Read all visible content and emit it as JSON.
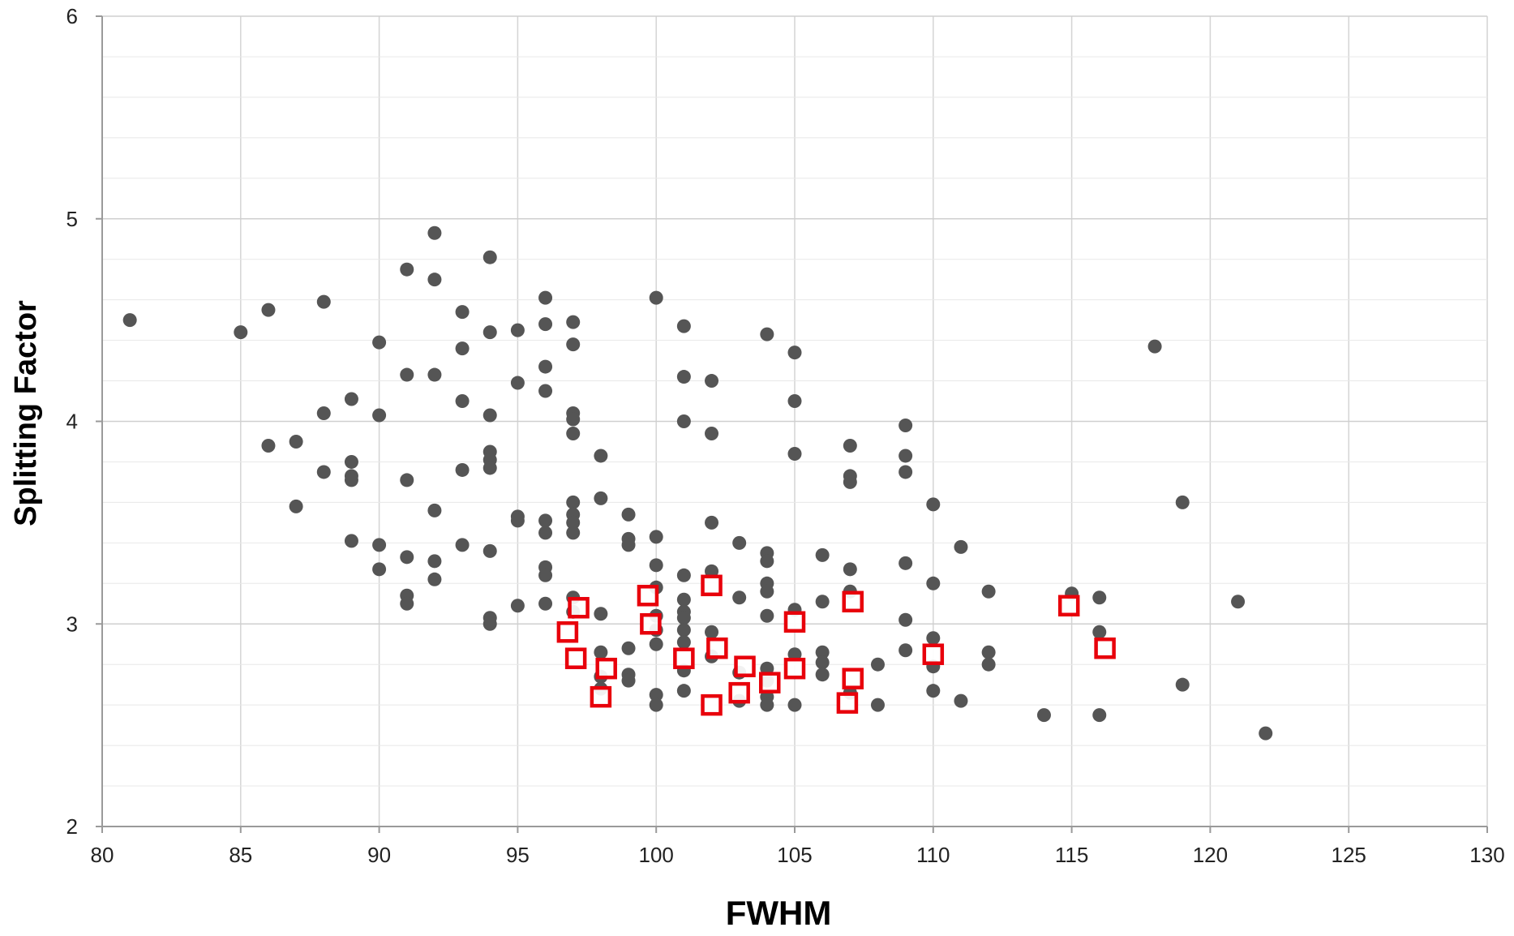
{
  "chart_data": {
    "type": "scatter",
    "title": "",
    "xlabel": "FWHM",
    "ylabel": "Splitting Factor",
    "xlim": [
      80,
      130
    ],
    "ylim": [
      2,
      6
    ],
    "xticks": [
      80,
      85,
      90,
      95,
      100,
      105,
      110,
      115,
      120,
      125,
      130
    ],
    "yticks": [
      2,
      3,
      4,
      5,
      6
    ],
    "x_tick_labels": [
      "80",
      "85",
      "90",
      "95",
      "100",
      "105",
      "110",
      "115",
      "120",
      "125",
      "130"
    ],
    "y_tick_labels": [
      "2",
      "3",
      "4",
      "5",
      "6"
    ],
    "grid": true,
    "legend": "none",
    "series": [
      {
        "marker": "filled-circle",
        "color": "#555555",
        "points": [
          [
            81,
            4.5
          ],
          [
            85,
            4.44
          ],
          [
            86,
            4.55
          ],
          [
            86,
            3.88
          ],
          [
            87,
            3.9
          ],
          [
            87,
            3.58
          ],
          [
            88,
            4.59
          ],
          [
            88,
            4.04
          ],
          [
            88,
            3.75
          ],
          [
            89,
            4.11
          ],
          [
            89,
            3.8
          ],
          [
            89,
            3.73
          ],
          [
            89,
            3.71
          ],
          [
            89,
            3.41
          ],
          [
            90,
            4.39
          ],
          [
            90,
            4.03
          ],
          [
            90,
            3.39
          ],
          [
            90,
            3.27
          ],
          [
            91,
            4.75
          ],
          [
            91,
            4.23
          ],
          [
            91,
            3.71
          ],
          [
            91,
            3.33
          ],
          [
            91,
            3.14
          ],
          [
            91,
            3.1
          ],
          [
            92,
            4.93
          ],
          [
            92,
            4.7
          ],
          [
            92,
            4.23
          ],
          [
            92,
            3.56
          ],
          [
            92,
            3.31
          ],
          [
            92,
            3.22
          ],
          [
            93,
            4.54
          ],
          [
            93,
            4.36
          ],
          [
            93,
            4.1
          ],
          [
            93,
            3.76
          ],
          [
            93,
            3.39
          ],
          [
            94,
            4.81
          ],
          [
            94,
            4.44
          ],
          [
            94,
            4.03
          ],
          [
            94,
            3.85
          ],
          [
            94,
            3.81
          ],
          [
            94,
            3.77
          ],
          [
            94,
            3.36
          ],
          [
            94,
            3.03
          ],
          [
            94,
            3.0
          ],
          [
            95,
            4.45
          ],
          [
            95,
            4.19
          ],
          [
            95,
            3.53
          ],
          [
            95,
            3.51
          ],
          [
            95,
            3.09
          ],
          [
            96,
            4.61
          ],
          [
            96,
            4.48
          ],
          [
            96,
            4.27
          ],
          [
            96,
            4.15
          ],
          [
            96,
            3.51
          ],
          [
            96,
            3.45
          ],
          [
            96,
            3.28
          ],
          [
            96,
            3.24
          ],
          [
            96,
            3.1
          ],
          [
            97,
            4.49
          ],
          [
            97,
            4.38
          ],
          [
            97,
            4.04
          ],
          [
            97,
            4.01
          ],
          [
            97,
            3.94
          ],
          [
            97,
            3.6
          ],
          [
            97,
            3.54
          ],
          [
            97,
            3.5
          ],
          [
            97,
            3.45
          ],
          [
            97,
            3.13
          ],
          [
            97,
            3.06
          ],
          [
            98,
            3.83
          ],
          [
            98,
            3.62
          ],
          [
            98,
            3.05
          ],
          [
            98,
            2.86
          ],
          [
            98,
            2.74
          ],
          [
            98,
            2.68
          ],
          [
            99,
            3.54
          ],
          [
            99,
            3.42
          ],
          [
            99,
            3.39
          ],
          [
            99,
            2.88
          ],
          [
            99,
            2.75
          ],
          [
            99,
            2.72
          ],
          [
            100,
            4.61
          ],
          [
            100,
            3.43
          ],
          [
            100,
            3.29
          ],
          [
            100,
            3.18
          ],
          [
            100,
            3.04
          ],
          [
            100,
            2.97
          ],
          [
            100,
            2.9
          ],
          [
            100,
            2.65
          ],
          [
            100,
            2.6
          ],
          [
            101,
            4.47
          ],
          [
            101,
            4.22
          ],
          [
            101,
            4.0
          ],
          [
            101,
            3.24
          ],
          [
            101,
            3.12
          ],
          [
            101,
            3.06
          ],
          [
            101,
            3.03
          ],
          [
            101,
            2.97
          ],
          [
            101,
            2.91
          ],
          [
            101,
            2.77
          ],
          [
            101,
            2.67
          ],
          [
            102,
            4.2
          ],
          [
            102,
            3.94
          ],
          [
            102,
            3.5
          ],
          [
            102,
            3.26
          ],
          [
            102,
            2.96
          ],
          [
            102,
            2.84
          ],
          [
            103,
            3.4
          ],
          [
            103,
            3.13
          ],
          [
            103,
            2.76
          ],
          [
            103,
            2.62
          ],
          [
            104,
            4.43
          ],
          [
            104,
            3.35
          ],
          [
            104,
            3.31
          ],
          [
            104,
            3.2
          ],
          [
            104,
            3.16
          ],
          [
            104,
            3.04
          ],
          [
            104,
            2.78
          ],
          [
            104,
            2.72
          ],
          [
            104,
            2.64
          ],
          [
            104,
            2.6
          ],
          [
            105,
            4.34
          ],
          [
            105,
            4.1
          ],
          [
            105,
            3.84
          ],
          [
            105,
            3.07
          ],
          [
            105,
            2.85
          ],
          [
            105,
            2.6
          ],
          [
            106,
            3.34
          ],
          [
            106,
            3.11
          ],
          [
            106,
            2.86
          ],
          [
            106,
            2.81
          ],
          [
            106,
            2.75
          ],
          [
            107,
            3.88
          ],
          [
            107,
            3.73
          ],
          [
            107,
            3.7
          ],
          [
            107,
            3.27
          ],
          [
            107,
            3.16
          ],
          [
            107,
            2.66
          ],
          [
            108,
            2.8
          ],
          [
            108,
            2.6
          ],
          [
            109,
            3.98
          ],
          [
            109,
            3.83
          ],
          [
            109,
            3.75
          ],
          [
            109,
            3.3
          ],
          [
            109,
            3.02
          ],
          [
            109,
            2.87
          ],
          [
            110,
            3.59
          ],
          [
            110,
            3.2
          ],
          [
            110,
            2.93
          ],
          [
            110,
            2.79
          ],
          [
            110,
            2.67
          ],
          [
            111,
            3.38
          ],
          [
            111,
            2.62
          ],
          [
            112,
            3.16
          ],
          [
            112,
            2.86
          ],
          [
            112,
            2.8
          ],
          [
            114,
            2.55
          ],
          [
            115,
            3.15
          ],
          [
            116,
            3.13
          ],
          [
            116,
            2.96
          ],
          [
            116,
            2.55
          ],
          [
            118,
            4.37
          ],
          [
            119,
            3.6
          ],
          [
            119,
            2.7
          ],
          [
            121,
            3.11
          ],
          [
            122,
            2.46
          ]
        ]
      },
      {
        "marker": "open-square",
        "color": "#e8000b",
        "points": [
          [
            96.8,
            2.96
          ],
          [
            97.2,
            3.08
          ],
          [
            97.1,
            2.83
          ],
          [
            98.2,
            2.78
          ],
          [
            98.0,
            2.64
          ],
          [
            99.7,
            3.14
          ],
          [
            99.8,
            3.0
          ],
          [
            101.0,
            2.83
          ],
          [
            102.0,
            3.19
          ],
          [
            102.2,
            2.88
          ],
          [
            102.0,
            2.6
          ],
          [
            103.2,
            2.79
          ],
          [
            103.0,
            2.66
          ],
          [
            104.1,
            2.71
          ],
          [
            105.0,
            3.01
          ],
          [
            105.0,
            2.78
          ],
          [
            107.1,
            3.11
          ],
          [
            107.1,
            2.73
          ],
          [
            106.9,
            2.61
          ],
          [
            110.0,
            2.85
          ],
          [
            114.9,
            3.09
          ],
          [
            116.2,
            2.88
          ]
        ]
      }
    ]
  }
}
